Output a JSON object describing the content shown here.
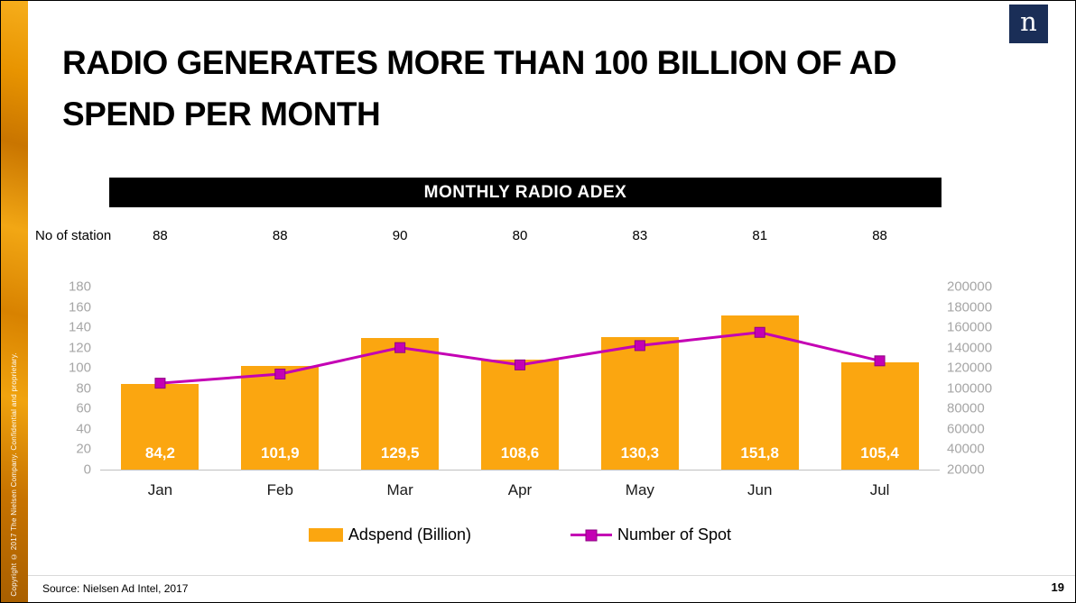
{
  "title": "RADIO GENERATES MORE THAN 100 BILLION OF AD SPEND PER MONTH",
  "logo": {
    "letter": "n"
  },
  "banner": "MONTHLY RADIO ADEX",
  "station": {
    "label": "No of station",
    "values": [
      "88",
      "88",
      "90",
      "80",
      "83",
      "81",
      "88"
    ]
  },
  "chart_data": {
    "type": "bar",
    "subtype": "bar+line combo",
    "title": "MONTHLY RADIO ADEX",
    "categories": [
      "Jan",
      "Feb",
      "Mar",
      "Apr",
      "May",
      "Jun",
      "Jul"
    ],
    "series": [
      {
        "name": "Adspend (Billion)",
        "type": "bar",
        "axis": "left",
        "values": [
          84.2,
          101.9,
          129.5,
          108.6,
          130.3,
          151.8,
          105.4
        ],
        "labels": [
          "84,2",
          "101,9",
          "129,5",
          "108,6",
          "130,3",
          "151,8",
          "105,4"
        ],
        "color": "#FBA610"
      },
      {
        "name": "Number of Spot",
        "type": "line",
        "axis": "right",
        "values": [
          105000,
          114000,
          140000,
          123000,
          142000,
          155000,
          127000
        ],
        "color": "#C400B4",
        "marker": "square",
        "marker_edge_color": "#8E0082"
      }
    ],
    "left_axis": {
      "min": 0,
      "max": 180,
      "step": 20,
      "ticks": [
        "180",
        "160",
        "140",
        "120",
        "100",
        "80",
        "60",
        "40",
        "20",
        "0"
      ]
    },
    "right_axis": {
      "min": 20000,
      "max": 200000,
      "step": 20000,
      "ticks": [
        "200000",
        "180000",
        "160000",
        "140000",
        "120000",
        "100000",
        "80000",
        "60000",
        "40000",
        "20000"
      ]
    },
    "grid": false,
    "legend_position": "bottom",
    "axis_label_color": "#a6a6a6"
  },
  "footer": {
    "source": "Source: Nielsen Ad Intel, 2017",
    "page_number": "19",
    "copyright_vertical": "Copyright © 2017 The Nielsen Company. Confidential and proprietary."
  }
}
